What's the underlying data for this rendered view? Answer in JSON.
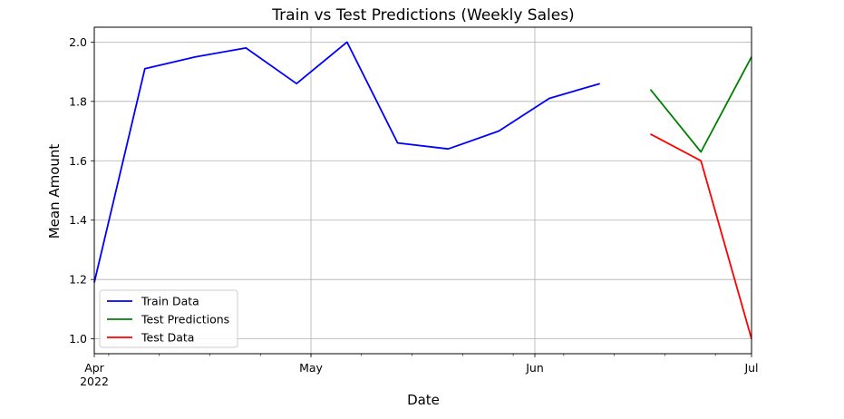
{
  "chart_data": {
    "type": "line",
    "title": "Train vs Test Predictions (Weekly Sales)",
    "xlabel": "Date",
    "ylabel": "Mean Amount",
    "xlim": [
      "2022-04-01",
      "2022-07-01"
    ],
    "ylim": [
      0.95,
      2.05
    ],
    "grid": true,
    "legend_location": "lower-left",
    "x_ticks": [
      {
        "date": "2022-04-01",
        "label": "Apr",
        "sublabel": "2022"
      },
      {
        "date": "2022-05-01",
        "label": "May",
        "sublabel": ""
      },
      {
        "date": "2022-06-01",
        "label": "Jun",
        "sublabel": ""
      },
      {
        "date": "2022-07-01",
        "label": "Jul",
        "sublabel": ""
      }
    ],
    "y_ticks": [
      1.0,
      1.2,
      1.4,
      1.6,
      1.8,
      2.0
    ],
    "y_tick_labels": [
      "1.0",
      "1.2",
      "1.4",
      "1.6",
      "1.8",
      "2.0"
    ],
    "series": [
      {
        "name": "Train Data",
        "color": "#0000ff",
        "x": [
          "2022-04-01",
          "2022-04-08",
          "2022-04-15",
          "2022-04-22",
          "2022-04-29",
          "2022-05-06",
          "2022-05-13",
          "2022-05-20",
          "2022-05-27",
          "2022-06-03",
          "2022-06-10"
        ],
        "values": [
          1.19,
          1.91,
          1.95,
          1.98,
          1.86,
          2.0,
          1.66,
          1.64,
          1.7,
          1.81,
          1.86
        ]
      },
      {
        "name": "Test Predictions",
        "color": "#008000",
        "x": [
          "2022-06-17",
          "2022-06-24",
          "2022-07-01"
        ],
        "values": [
          1.84,
          1.63,
          1.95
        ]
      },
      {
        "name": "Test Data",
        "color": "#ff0000",
        "x": [
          "2022-06-17",
          "2022-06-24",
          "2022-07-01"
        ],
        "values": [
          1.69,
          1.6,
          1.0
        ]
      }
    ]
  }
}
